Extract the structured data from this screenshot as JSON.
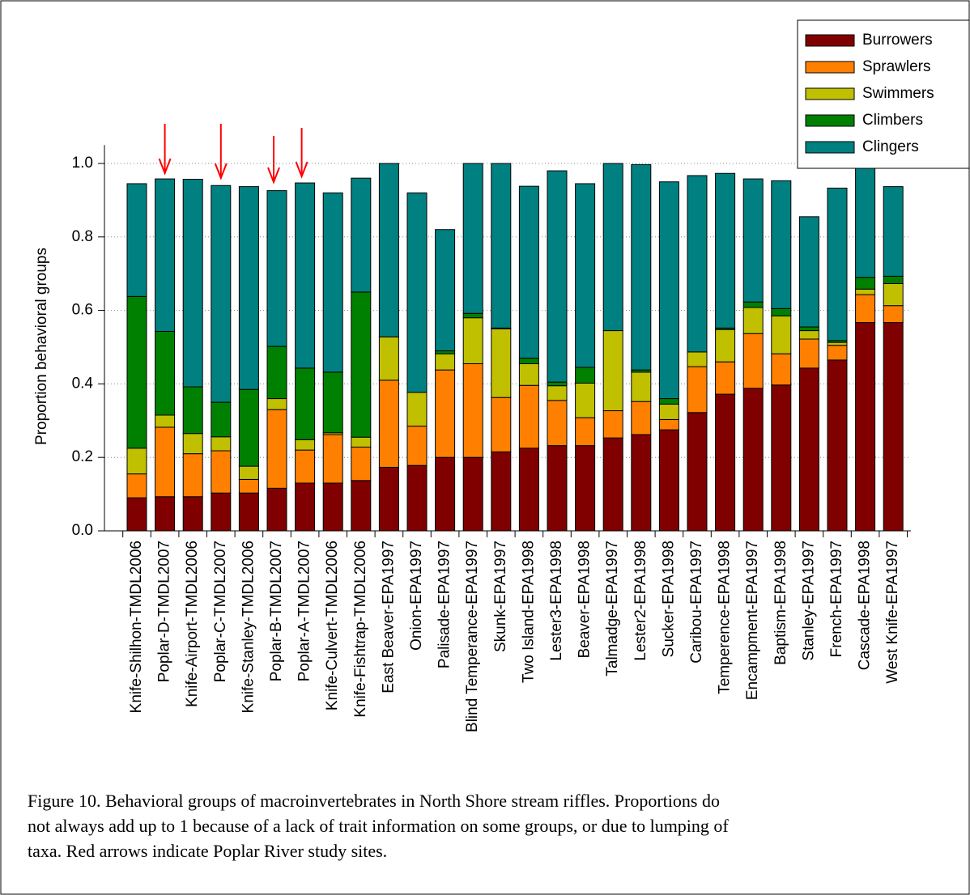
{
  "chart_data": {
    "type": "stacked-bar",
    "ylabel": "Proportion behavioral groups",
    "caption": [
      "Figure 10. Behavioral groups of macroinvertebrates in North Shore stream riffles. Proportions do",
      "not always add up to 1 because of a lack of trait information on some groups, or due to lumping of",
      "taxa. Red arrows indicate Poplar River study sites."
    ],
    "categories": [
      "Knife-Shilhon-TMDL2006",
      "Poplar-D-TMDL2007",
      "Knife-Airport-TMDL2006",
      "Poplar-C-TMDL2007",
      "Knife-Stanley-TMDL2006",
      "Poplar-B-TMDL2007",
      "Poplar-A-TMDL2007",
      "Knife-Culvert-TMDL2006",
      "Knife-Fishtrap-TMDL2006",
      "East Beaver-EPA1997",
      "Onion-EPA1997",
      "Palisade-EPA1997",
      "Blind Temperance-EPA1997",
      "Skunk-EPA1997",
      "Two Island-EPA1998",
      "Lester3-EPA1998",
      "Beaver-EPA1998",
      "Talmadge-EPA1997",
      "Lester2-EPA1998",
      "Sucker-EPA1998",
      "Caribou-EPA1997",
      "Temperence-EPA1998",
      "Encampment-EPA1997",
      "Baptism-EPA1998",
      "Stanley-EPA1997",
      "French-EPA1997",
      "Cascade-EPA1998",
      "West Knife-EPA1997"
    ],
    "series": [
      {
        "name": "Burrowers",
        "color": "#800000",
        "values": [
          0.09,
          0.093,
          0.093,
          0.103,
          0.103,
          0.116,
          0.13,
          0.13,
          0.137,
          0.173,
          0.178,
          0.2,
          0.2,
          0.215,
          0.225,
          0.232,
          0.232,
          0.253,
          0.262,
          0.275,
          0.322,
          0.372,
          0.388,
          0.397,
          0.443,
          0.465,
          0.567,
          0.567
        ]
      },
      {
        "name": "Sprawlers",
        "color": "#ff8000",
        "values": [
          0.065,
          0.189,
          0.117,
          0.115,
          0.037,
          0.214,
          0.09,
          0.132,
          0.091,
          0.237,
          0.107,
          0.238,
          0.255,
          0.148,
          0.171,
          0.123,
          0.076,
          0.074,
          0.09,
          0.028,
          0.125,
          0.088,
          0.149,
          0.085,
          0.079,
          0.04,
          0.076,
          0.046
        ]
      },
      {
        "name": "Swimmers",
        "color": "#c0c000",
        "values": [
          0.07,
          0.033,
          0.055,
          0.038,
          0.036,
          0.03,
          0.028,
          0.005,
          0.027,
          0.118,
          0.092,
          0.044,
          0.125,
          0.187,
          0.059,
          0.04,
          0.094,
          0.218,
          0.08,
          0.042,
          0.04,
          0.088,
          0.071,
          0.103,
          0.023,
          0.008,
          0.015,
          0.06
        ]
      },
      {
        "name": "Climbers",
        "color": "#008000",
        "values": [
          0.413,
          0.228,
          0.127,
          0.094,
          0.209,
          0.142,
          0.195,
          0.165,
          0.395,
          0,
          0,
          0.008,
          0.012,
          0.002,
          0.015,
          0.01,
          0.043,
          0,
          0.006,
          0.015,
          0,
          0.004,
          0.015,
          0.02,
          0.01,
          0.005,
          0.032,
          0.02
        ]
      },
      {
        "name": "Clingers",
        "color": "#008080",
        "values": [
          0.307,
          0.415,
          0.565,
          0.59,
          0.552,
          0.424,
          0.504,
          0.488,
          0.31,
          0.472,
          0.543,
          0.33,
          0.408,
          0.448,
          0.468,
          0.575,
          0.5,
          0.455,
          0.559,
          0.59,
          0.48,
          0.421,
          0.335,
          0.348,
          0.3,
          0.415,
          0.3,
          0.244
        ]
      }
    ],
    "ylim": [
      0,
      1.05
    ],
    "yticks": [
      {
        "value": 0,
        "label": "0.0"
      },
      0.2,
      0.4,
      0.6,
      0.8,
      {
        "value": 1,
        "label": "1.0"
      }
    ],
    "grid": true,
    "legend": "upper right"
  }
}
